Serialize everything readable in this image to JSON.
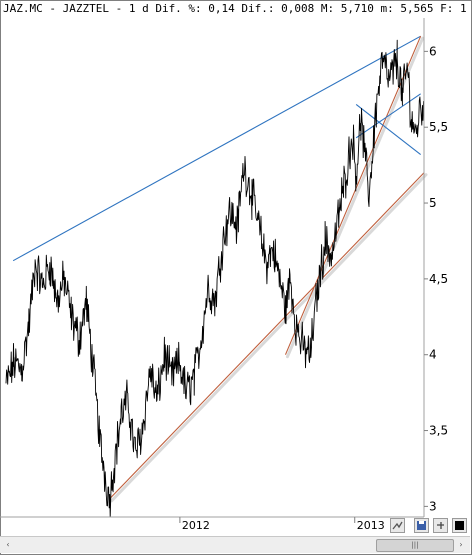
{
  "header": {
    "info_text": "JAZ.MC - JAZZTEL - 1 d Dif. %: 0,14 Dif.: 0,008 M: 5,710 m: 5,565 F: 1"
  },
  "toolbar": {
    "icons": [
      "chart-tool-icon",
      "save-disk-icon",
      "pin-icon",
      "color-box-icon"
    ]
  },
  "scrollbar": {
    "left_arrow": "‹",
    "right_arrow": "›",
    "thumb_grip": "|||"
  },
  "colors": {
    "price_line": "#000000",
    "upper_trend_line": "#2f74c0",
    "support_trend_lines": "#c0603e"
  },
  "chart_data": {
    "type": "line",
    "title": "JAZ.MC - JAZZTEL - 1 d",
    "xlabel": "",
    "ylabel": "",
    "ylim": [
      2.93,
      6.22
    ],
    "xlim": [
      "2011-01-03",
      "2013-05-27"
    ],
    "y_axis_position": "right",
    "y_ticks": [
      6,
      5.5,
      5,
      4.5,
      4,
      3.5,
      3
    ],
    "y_tick_labels": [
      "6",
      "5,5",
      "5",
      "4,5",
      "4",
      "3,5",
      "3"
    ],
    "x_ticks": [
      "2012-01-02",
      "2013-01-02"
    ],
    "x_tick_labels": [
      "2012",
      "2013"
    ],
    "grid": false,
    "legend": "none",
    "series": [
      {
        "name": "",
        "dates": [
          "2011-01-03",
          "2011-01-20",
          "2011-02-05",
          "2011-02-20",
          "2011-03-05",
          "2011-03-20",
          "2011-04-05",
          "2011-04-20",
          "2011-05-05",
          "2011-05-20",
          "2011-06-05",
          "2011-06-20",
          "2011-07-05",
          "2011-07-20",
          "2011-08-01",
          "2011-08-08",
          "2011-08-16",
          "2011-09-01",
          "2011-09-15",
          "2011-10-01",
          "2011-10-15",
          "2011-11-01",
          "2011-11-15",
          "2011-12-01",
          "2011-12-15",
          "2012-01-01",
          "2012-01-15",
          "2012-02-01",
          "2012-02-15",
          "2012-03-01",
          "2012-03-15",
          "2012-04-01",
          "2012-04-15",
          "2012-05-01",
          "2012-05-15",
          "2012-06-01",
          "2012-06-15",
          "2012-07-01",
          "2012-07-15",
          "2012-08-01",
          "2012-08-10",
          "2012-08-20",
          "2012-09-01",
          "2012-09-15",
          "2012-10-01",
          "2012-10-15",
          "2012-11-01",
          "2012-11-15",
          "2012-12-01",
          "2012-12-15",
          "2012-12-28",
          "2013-01-05",
          "2013-01-15",
          "2013-02-01",
          "2013-02-15",
          "2013-03-01",
          "2013-03-15",
          "2013-04-01",
          "2013-04-12",
          "2013-04-22",
          "2013-05-01",
          "2013-05-10",
          "2013-05-20",
          "2013-05-27"
        ],
        "values": [
          3.8,
          3.95,
          3.9,
          4.2,
          4.6,
          4.45,
          4.6,
          4.35,
          4.5,
          4.25,
          4.1,
          4.35,
          3.9,
          3.4,
          3.15,
          3.05,
          3.25,
          3.6,
          3.7,
          3.35,
          3.5,
          3.9,
          3.7,
          4.0,
          3.85,
          3.95,
          3.75,
          3.85,
          4.1,
          4.45,
          4.35,
          4.75,
          4.95,
          4.85,
          5.25,
          5.05,
          4.85,
          4.6,
          4.7,
          4.45,
          4.3,
          4.5,
          4.2,
          4.05,
          4.0,
          4.4,
          4.75,
          4.65,
          4.95,
          5.2,
          5.45,
          5.2,
          5.55,
          5.05,
          5.6,
          5.95,
          5.8,
          5.95,
          5.7,
          5.9,
          5.55,
          5.45,
          5.65,
          5.6
        ]
      }
    ],
    "trend_lines": [
      {
        "color": "blue",
        "from": [
          "2011-01-18",
          4.62
        ],
        "to": [
          "2013-05-20",
          6.1
        ]
      },
      {
        "color": "brown",
        "from": [
          "2011-08-08",
          3.05
        ],
        "to": [
          "2013-05-27",
          5.2
        ]
      },
      {
        "color": "brown",
        "from": [
          "2012-08-10",
          4.0
        ],
        "to": [
          "2013-05-20",
          6.1
        ]
      },
      {
        "color": "blue",
        "from": [
          "2013-01-05",
          5.65
        ],
        "to": [
          "2013-05-20",
          5.32
        ]
      },
      {
        "color": "blue",
        "from": [
          "2013-01-05",
          5.43
        ],
        "to": [
          "2013-05-20",
          5.72
        ]
      }
    ]
  }
}
